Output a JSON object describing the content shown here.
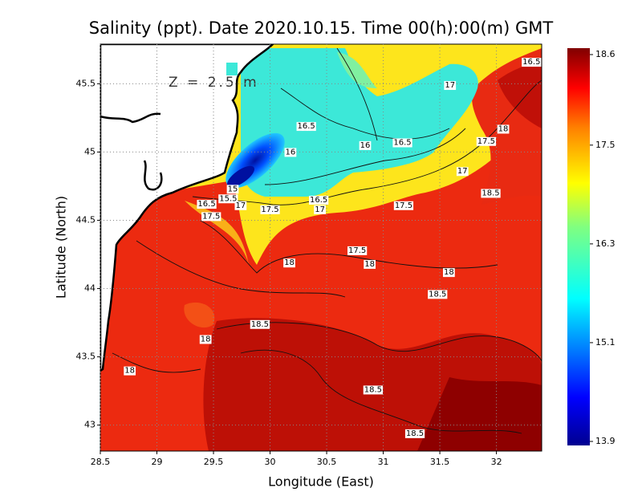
{
  "chart_data": {
    "type": "contour-map",
    "title": "Salinity (ppt). Date 2020.10.15. Time 00(h):00(m) GMT",
    "annotation": "Z = 2.5 m",
    "x_label": "Longitude (East)",
    "y_label": "Latitude (North)",
    "xlim": [
      28.5,
      32.4
    ],
    "ylim": [
      42.81,
      45.79
    ],
    "xticks": [
      28.5,
      29,
      29.5,
      30,
      30.5,
      31,
      31.5,
      32
    ],
    "yticks": [
      43,
      43.5,
      44,
      44.5,
      45,
      45.5
    ],
    "grid": true,
    "colorbar_lim": [
      13.9,
      18.6
    ],
    "colorbar_ticks": [
      13.9,
      15.1,
      16.3,
      17.5,
      18.6
    ],
    "contour_labels": [
      {
        "value": 16.5,
        "lon": 32.31,
        "lat": 45.66
      },
      {
        "value": 17,
        "lon": 31.59,
        "lat": 45.49
      },
      {
        "value": 16.5,
        "lon": 30.32,
        "lat": 45.19
      },
      {
        "value": 18,
        "lon": 32.06,
        "lat": 45.17
      },
      {
        "value": 16,
        "lon": 30.18,
        "lat": 45.0
      },
      {
        "value": 16,
        "lon": 30.84,
        "lat": 45.05
      },
      {
        "value": 16.5,
        "lon": 31.17,
        "lat": 45.07
      },
      {
        "value": 17.5,
        "lon": 31.91,
        "lat": 45.08
      },
      {
        "value": 17,
        "lon": 31.7,
        "lat": 44.86
      },
      {
        "value": 15,
        "lon": 29.67,
        "lat": 44.73
      },
      {
        "value": 15.5,
        "lon": 29.63,
        "lat": 44.66
      },
      {
        "value": 18.5,
        "lon": 31.95,
        "lat": 44.7
      },
      {
        "value": 16.5,
        "lon": 29.44,
        "lat": 44.62
      },
      {
        "value": 17,
        "lon": 29.74,
        "lat": 44.61
      },
      {
        "value": 16.5,
        "lon": 30.43,
        "lat": 44.65
      },
      {
        "value": 17,
        "lon": 30.44,
        "lat": 44.58
      },
      {
        "value": 17.5,
        "lon": 30.0,
        "lat": 44.58
      },
      {
        "value": 17.5,
        "lon": 31.18,
        "lat": 44.61
      },
      {
        "value": 17.5,
        "lon": 29.48,
        "lat": 44.53
      },
      {
        "value": 17.5,
        "lon": 30.77,
        "lat": 44.28
      },
      {
        "value": 18,
        "lon": 30.17,
        "lat": 44.19
      },
      {
        "value": 18,
        "lon": 30.88,
        "lat": 44.18
      },
      {
        "value": 18,
        "lon": 31.58,
        "lat": 44.12
      },
      {
        "value": 18.5,
        "lon": 31.48,
        "lat": 43.96
      },
      {
        "value": 18.5,
        "lon": 29.91,
        "lat": 43.74
      },
      {
        "value": 18,
        "lon": 29.43,
        "lat": 43.63
      },
      {
        "value": 18,
        "lon": 28.76,
        "lat": 43.4
      },
      {
        "value": 18.5,
        "lon": 30.91,
        "lat": 43.26
      },
      {
        "value": 18.5,
        "lon": 31.28,
        "lat": 42.94
      }
    ]
  }
}
